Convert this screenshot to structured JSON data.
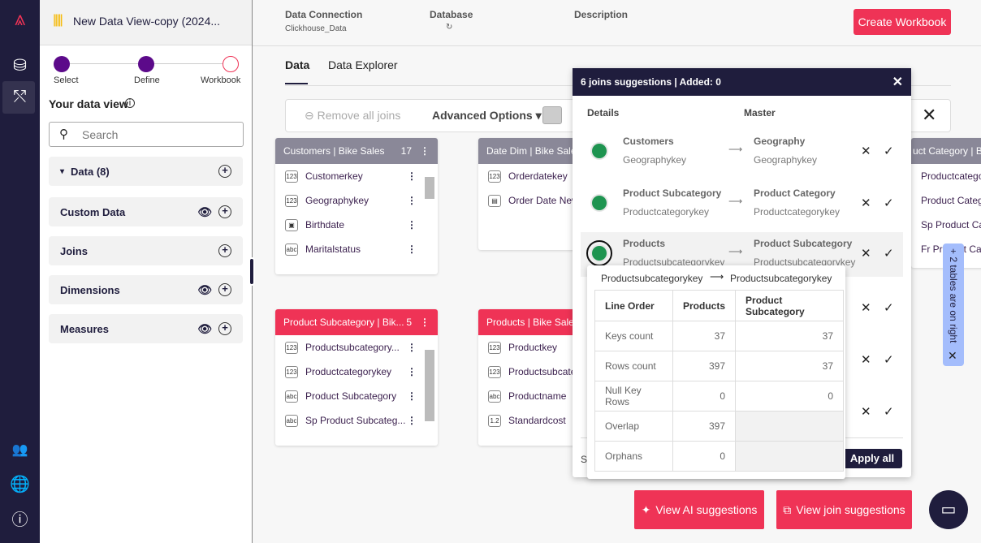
{
  "app": {
    "title": "New Data View-copy (2024...",
    "logo": "brand-logo"
  },
  "rail": {
    "icons": [
      "database-icon",
      "joins-icon",
      "users-icon",
      "globe-icon",
      "help-icon"
    ]
  },
  "steps": [
    {
      "label": "Select",
      "done": true
    },
    {
      "label": "Define",
      "done": true
    },
    {
      "label": "Workbook",
      "done": false
    }
  ],
  "sidebar": {
    "title": "Your data view",
    "search_placeholder": "Search",
    "sections": [
      {
        "label": "Data (8)",
        "eye": false
      },
      {
        "label": "Custom Data",
        "eye": true
      },
      {
        "label": "Joins",
        "eye": false
      },
      {
        "label": "Dimensions",
        "eye": true
      },
      {
        "label": "Measures",
        "eye": true
      }
    ]
  },
  "header": {
    "conn_label": "Data Connection",
    "conn_value": "Clickhouse_Data",
    "db_label": "Database",
    "desc_label": "Description",
    "create": "Create Workbook"
  },
  "tabs": [
    "Data",
    "Data Explorer"
  ],
  "toolbar": {
    "remove": "Remove all joins",
    "advanced": "Advanced Options"
  },
  "cards": {
    "customers": {
      "title": "Customers  |  Bike Sales",
      "count": "17",
      "rows": [
        [
          "123",
          "Customerkey"
        ],
        [
          "123",
          "Geographykey"
        ],
        [
          "dt",
          "Birthdate"
        ],
        [
          "abc",
          "Maritalstatus"
        ]
      ]
    },
    "datedim": {
      "title": "Date Dim  |  Bike Sales",
      "rows": [
        [
          "123",
          "Orderdatekey"
        ],
        [
          "cal",
          "Order Date New"
        ]
      ]
    },
    "prodcat": {
      "title": "uct Category  |  B",
      "rows": [
        [
          "",
          "Productcategory"
        ],
        [
          "",
          "Product Categor"
        ],
        [
          "",
          "Sp Product Cate"
        ],
        [
          "",
          "Fr Product Categ"
        ]
      ]
    },
    "prodsub": {
      "title": "Product Subcategory  |  Bik...",
      "count": "5",
      "rows": [
        [
          "123",
          "Productsubcategory..."
        ],
        [
          "123",
          "Productcategorykey"
        ],
        [
          "abc",
          "Product Subcategory"
        ],
        [
          "abc",
          "Sp Product Subcateg..."
        ]
      ]
    },
    "products": {
      "title": "Products  |  Bike Sales",
      "rows": [
        [
          "123",
          "Productkey"
        ],
        [
          "123",
          "Productsubcate"
        ],
        [
          "abc",
          "Productname"
        ],
        [
          "1.2",
          "Standardcost"
        ]
      ]
    }
  },
  "popup": {
    "title": "6 joins suggestions  |  Added: 0",
    "details": "Details",
    "master": "Master",
    "joins": [
      {
        "dt": "Customers",
        "dk": "Geographykey",
        "mt": "Geography",
        "mk": "Geographykey"
      },
      {
        "dt": "Product Subcategory",
        "dk": "Productcategorykey",
        "mt": "Product Category",
        "mk": "Productcategorykey"
      },
      {
        "dt": "Products",
        "dk": "Productsubcategorykey",
        "mt": "Product Subcategory",
        "mk": "Productsubcategorykey"
      }
    ],
    "footer_s": "S",
    "apply": "Apply all"
  },
  "tooltip": {
    "from": "Productsubcategorykey",
    "to": "Productsubcategorykey",
    "header": [
      "Line Order",
      "Products",
      "Product Subcategory"
    ],
    "rows": [
      [
        "Keys count",
        "37",
        "37"
      ],
      [
        "Rows count",
        "397",
        "37"
      ],
      [
        "Null Key Rows",
        "0",
        "0"
      ],
      [
        "Overlap",
        "397",
        ""
      ],
      [
        "Orphans",
        "0",
        ""
      ]
    ]
  },
  "side_tag": "+ 2 tables are on right",
  "buttons": {
    "ai": "View AI suggestions",
    "join": "View join suggestions"
  },
  "colors": {
    "rail": "#1f1d3d",
    "accent": "#ef3356",
    "step": "#5c0a8a",
    "match": "#1e9450",
    "tag": "#a4bdfc"
  }
}
